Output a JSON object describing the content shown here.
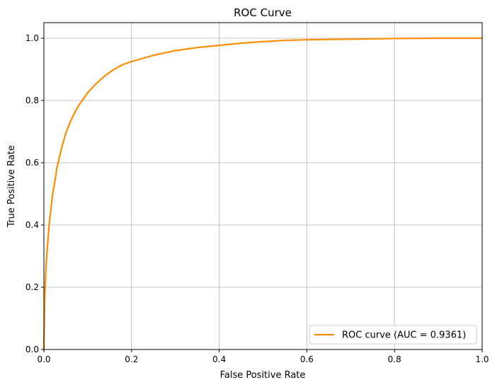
{
  "chart_data": {
    "type": "line",
    "title": "ROC Curve",
    "xlabel": "False Positive Rate",
    "ylabel": "True Positive Rate",
    "xlim": [
      0.0,
      1.0
    ],
    "ylim": [
      0.0,
      1.05
    ],
    "grid": true,
    "legend_position": "lower-right",
    "xticks": [
      "0.0",
      "0.2",
      "0.4",
      "0.6",
      "0.8",
      "1.0"
    ],
    "yticks": [
      "0.0",
      "0.2",
      "0.4",
      "0.6",
      "0.8",
      "1.0"
    ],
    "series": [
      {
        "name": "ROC curve (AUC = 0.9361)",
        "color": "#ff8c00",
        "x": [
          0.0,
          0.002,
          0.005,
          0.008,
          0.012,
          0.016,
          0.02,
          0.025,
          0.03,
          0.035,
          0.04,
          0.05,
          0.06,
          0.07,
          0.08,
          0.09,
          0.1,
          0.12,
          0.14,
          0.16,
          0.18,
          0.2,
          0.25,
          0.3,
          0.35,
          0.4,
          0.45,
          0.5,
          0.55,
          0.6,
          0.7,
          0.8,
          0.9,
          1.0
        ],
        "y": [
          0.0,
          0.17,
          0.27,
          0.33,
          0.4,
          0.45,
          0.5,
          0.54,
          0.585,
          0.615,
          0.645,
          0.695,
          0.73,
          0.76,
          0.785,
          0.805,
          0.825,
          0.855,
          0.88,
          0.9,
          0.915,
          0.925,
          0.945,
          0.96,
          0.97,
          0.977,
          0.984,
          0.989,
          0.993,
          0.995,
          0.997,
          0.999,
          1.0,
          1.0
        ]
      }
    ]
  }
}
